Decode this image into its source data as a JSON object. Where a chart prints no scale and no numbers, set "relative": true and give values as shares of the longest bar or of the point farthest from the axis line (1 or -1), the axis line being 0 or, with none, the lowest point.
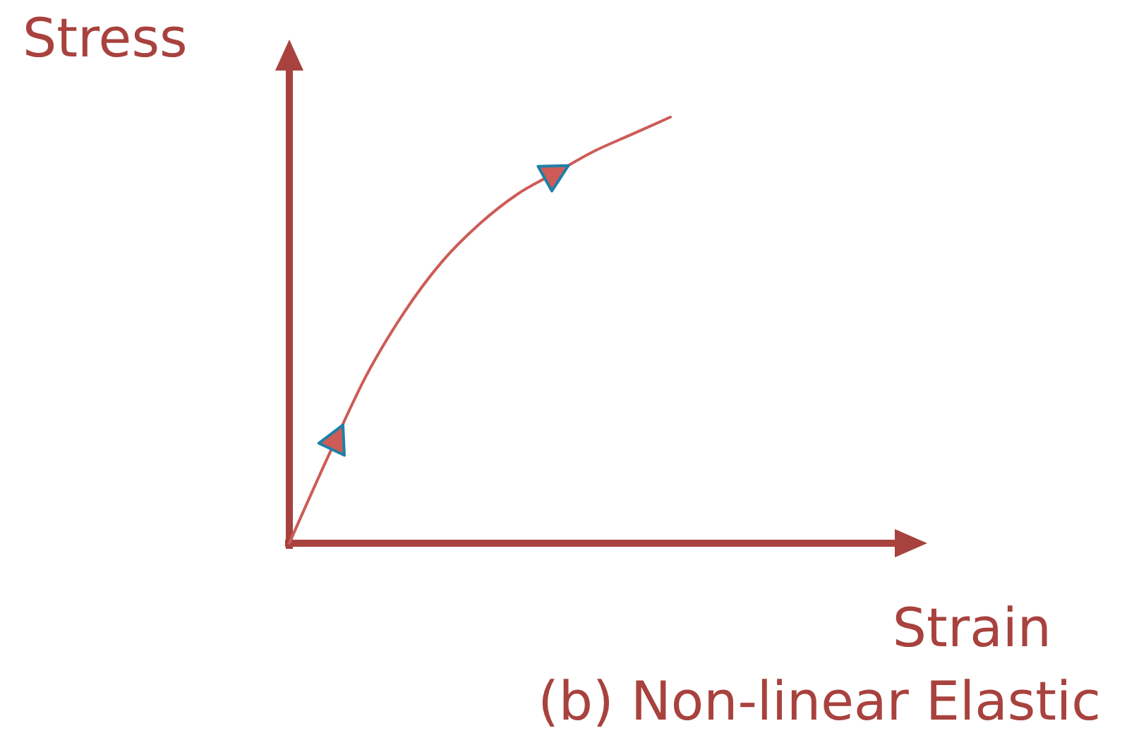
{
  "chart_data": {
    "type": "line",
    "relative": true,
    "xlabel": "Strain",
    "ylabel": "Stress",
    "annotations": [
      "(b) Non-linear Elastic"
    ],
    "categories": [
      null,
      null,
      null,
      null,
      null,
      null,
      null,
      null,
      null,
      null,
      null
    ],
    "series": [
      {
        "color": "#cd5c57",
        "values": [
          0,
          0.2,
          0.39,
          0.54,
          0.66,
          0.75,
          0.82,
          0.87,
          0.92,
          0.96,
          1
        ]
      }
    ]
  }
}
